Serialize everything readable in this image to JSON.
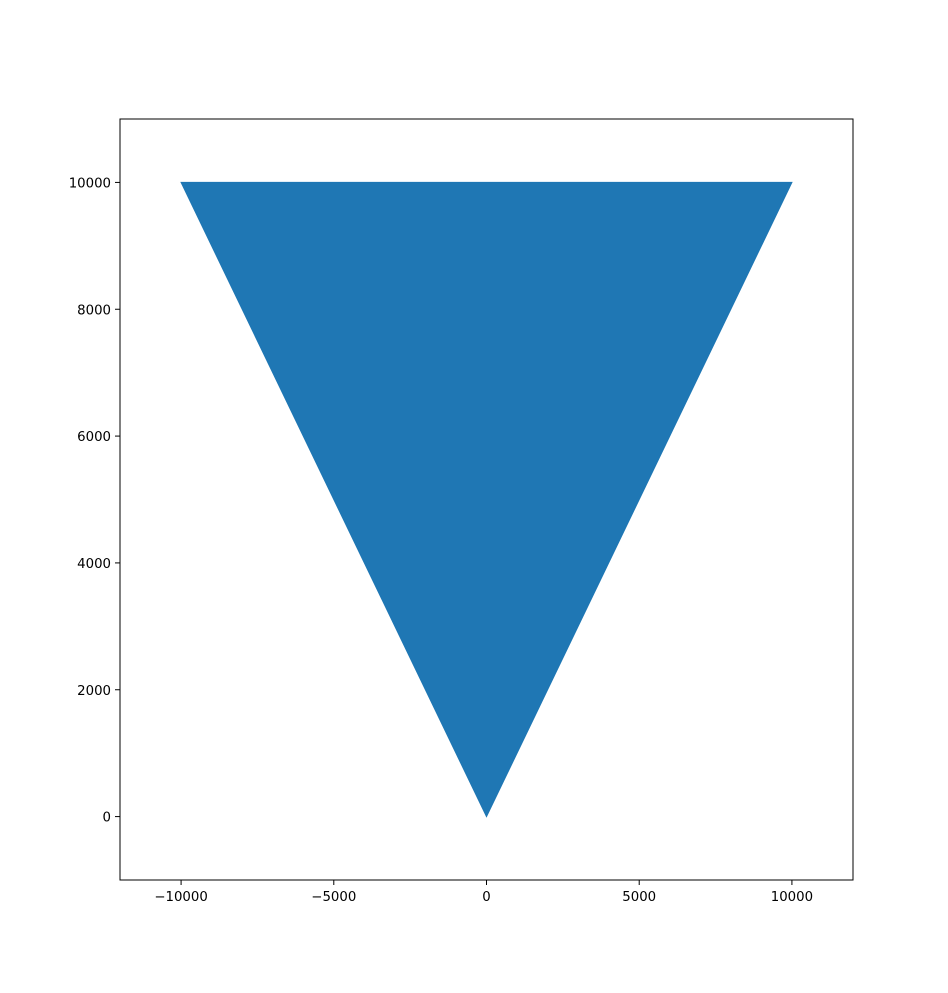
{
  "chart_data": {
    "type": "area",
    "title": "",
    "xlabel": "",
    "ylabel": "",
    "xlim": [
      -12000,
      12000
    ],
    "ylim": [
      -1000,
      11000
    ],
    "x_ticks": [
      -10000,
      -5000,
      0,
      5000,
      10000
    ],
    "y_ticks": [
      0,
      2000,
      4000,
      6000,
      8000,
      10000
    ],
    "x_tick_labels": [
      "−10000",
      "−5000",
      "0",
      "5000",
      "10000"
    ],
    "y_tick_labels": [
      "0",
      "2000",
      "4000",
      "6000",
      "8000",
      "10000"
    ],
    "grid": false,
    "legend": "none",
    "series": [
      {
        "color": "#1f77b4",
        "vertices": [
          {
            "x": -10000,
            "y": 10000
          },
          {
            "x": 10000,
            "y": 10000
          },
          {
            "x": 0,
            "y": 0
          }
        ]
      }
    ]
  }
}
